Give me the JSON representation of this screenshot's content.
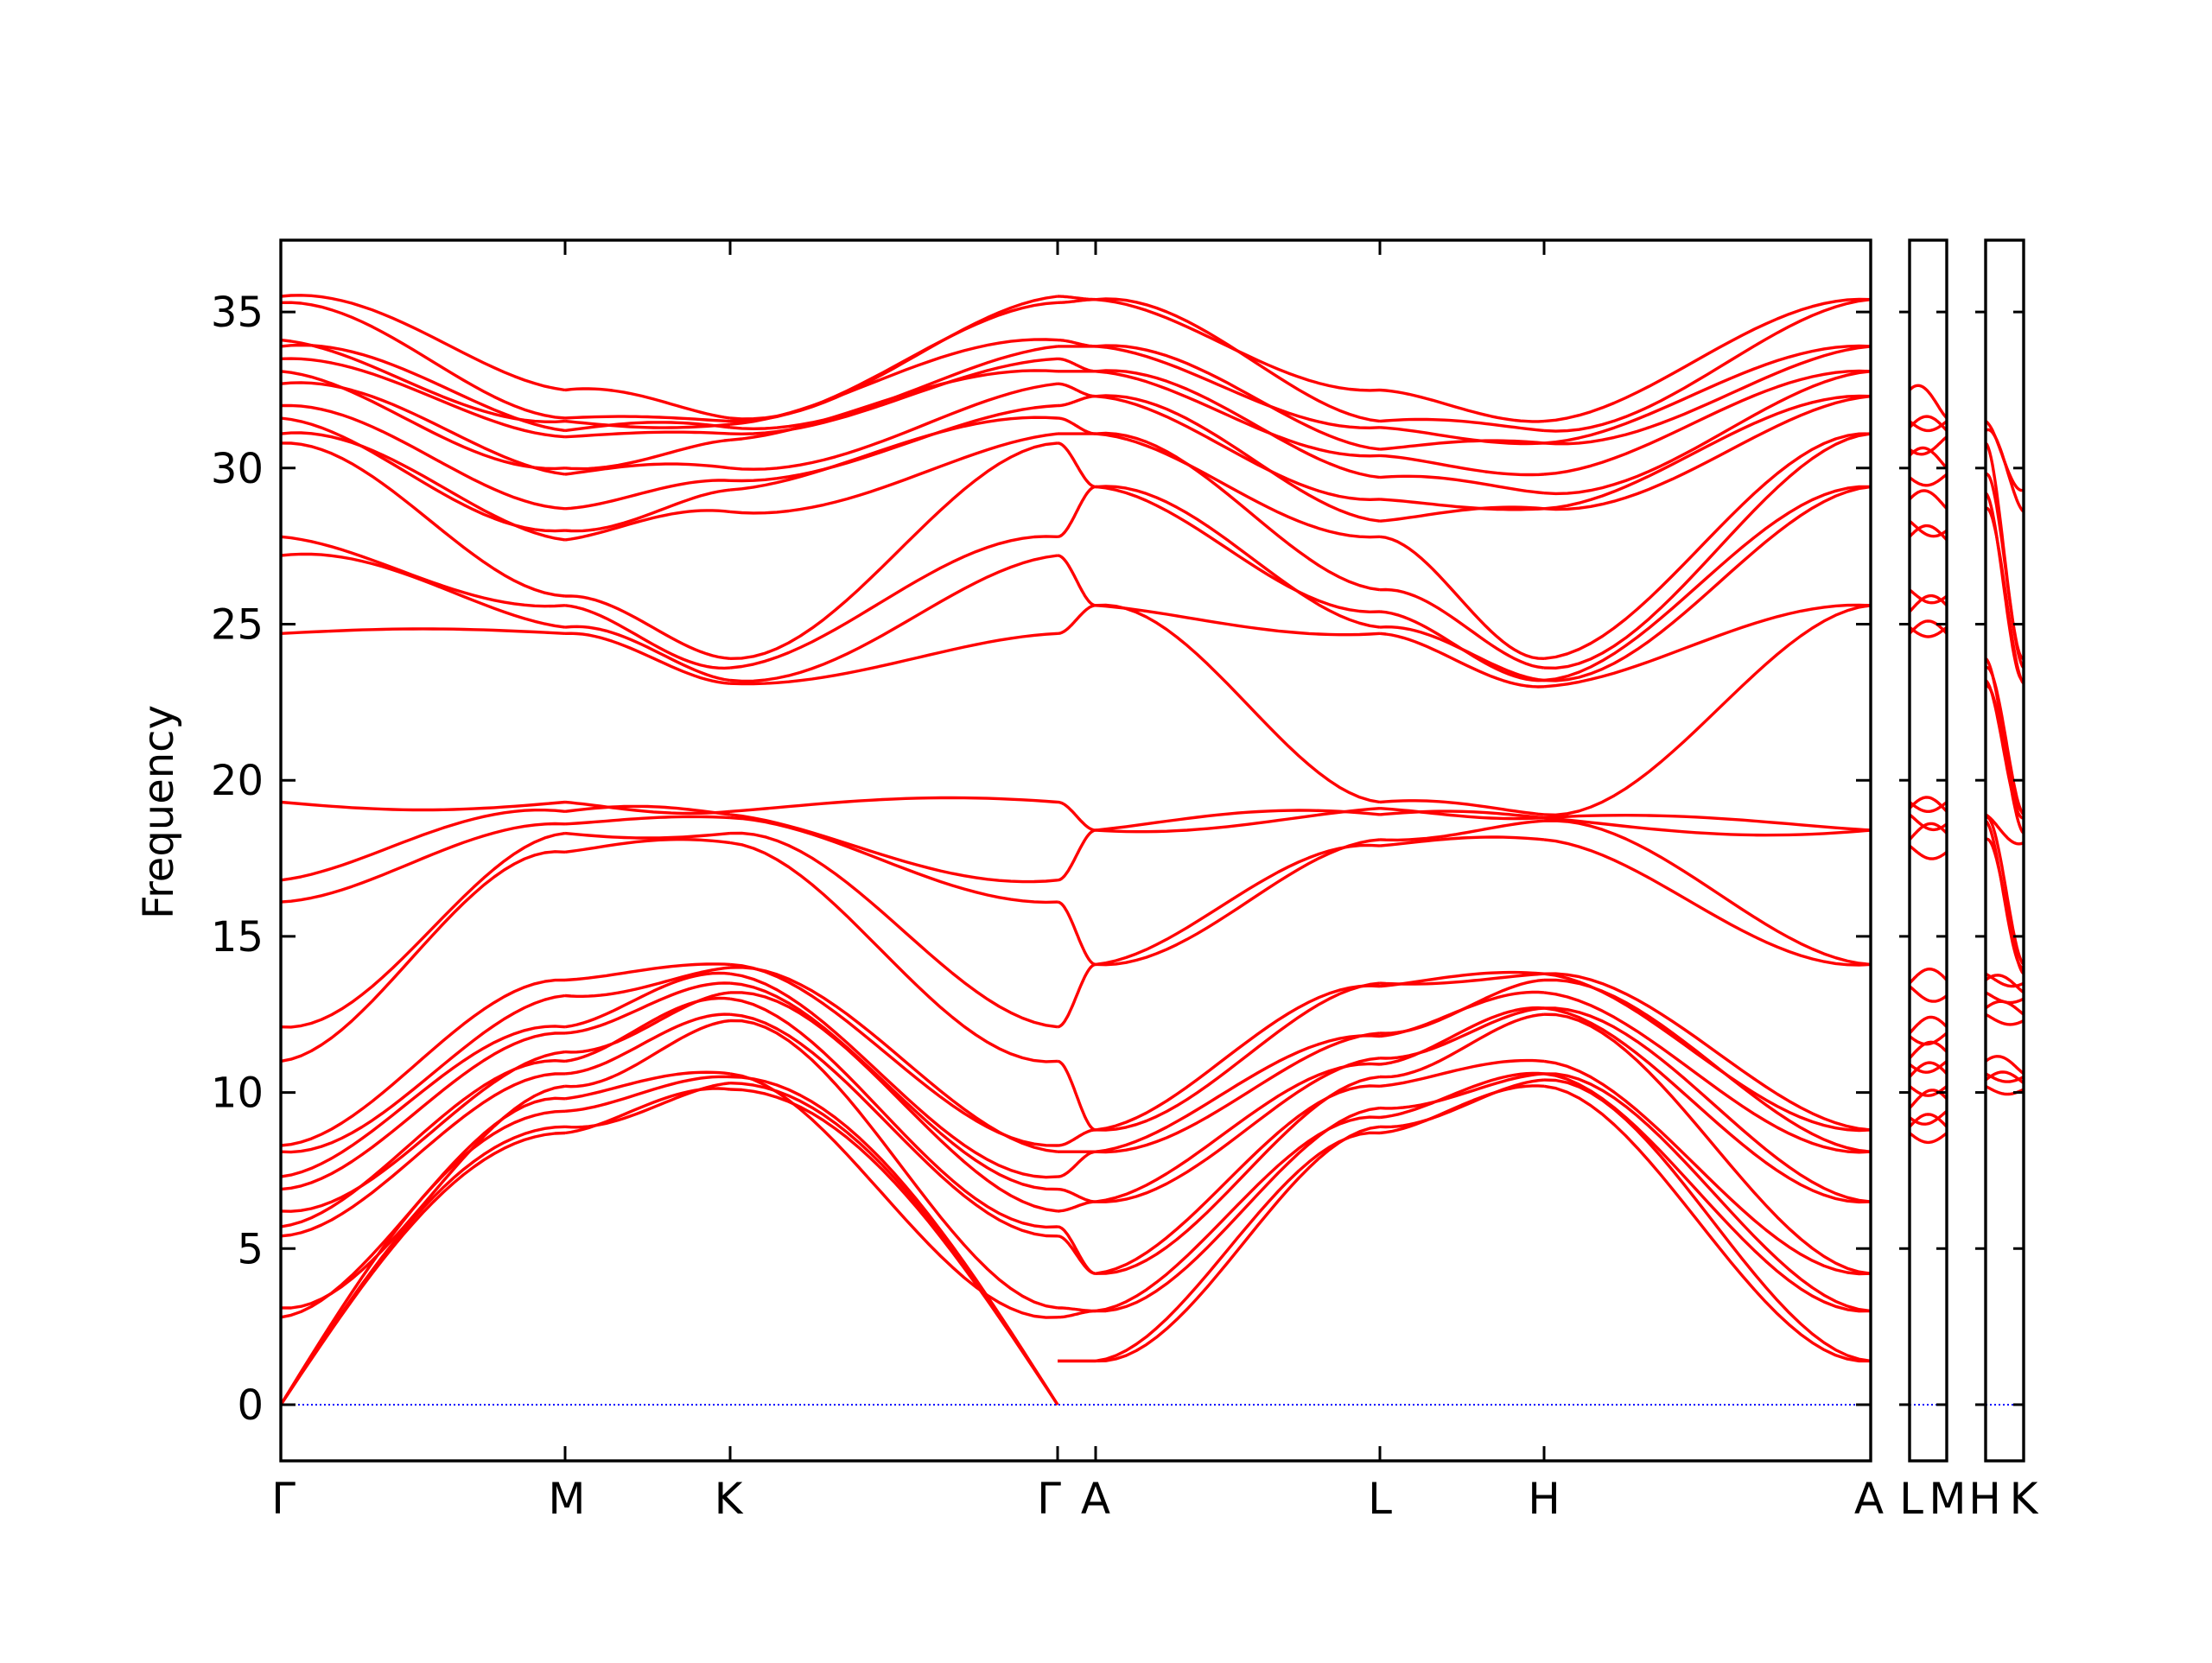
{
  "chart_data": {
    "type": "line",
    "title": "",
    "ylabel": "Frequency",
    "xlabel": "",
    "ylim": [
      -1.8,
      37.3
    ],
    "yticks": [
      0,
      5,
      10,
      15,
      20,
      25,
      30,
      35
    ],
    "grid": false,
    "legend": "none",
    "colors": {
      "bands": "#ff0000",
      "zero_line": "#0000ff",
      "axes": "#000000"
    },
    "panels": [
      {
        "id": "main",
        "path": [
          "Γ",
          "M",
          "K",
          "Γ",
          "A",
          "L",
          "H",
          "A"
        ],
        "tick_labels": [
          "Γ",
          "M",
          "K",
          "Γ",
          "A",
          "L",
          "H",
          "A"
        ]
      },
      {
        "id": "lm",
        "path": [
          "L",
          "M"
        ],
        "tick_labels": [
          "L",
          "M"
        ]
      },
      {
        "id": "hk",
        "path": [
          "H",
          "K"
        ],
        "tick_labels": [
          "H",
          "K"
        ]
      }
    ],
    "combined_tick_labels": {
      "main_end": "A",
      "lm_pair": "LM",
      "hk_pair": "HK"
    },
    "point_values": {
      "Γ": [
        0,
        0,
        0,
        2.8,
        3.1,
        5.4,
        5.7,
        6.2,
        6.9,
        7.3,
        8.1,
        8.3,
        11.0,
        12.1,
        16.1,
        16.8,
        19.3,
        24.7,
        27.2,
        27.8,
        30.8,
        31.1,
        31.6,
        32.0,
        32.7,
        33.1,
        33.5,
        33.9,
        34.1,
        35.3,
        35.5
      ],
      "M": [
        8.7,
        8.9,
        9.4,
        9.8,
        10.2,
        10.6,
        11.0,
        11.3,
        11.9,
        12.1,
        13.1,
        13.6,
        17.7,
        18.3,
        18.6,
        19.0,
        19.3,
        24.7,
        24.9,
        25.6,
        25.9,
        27.7,
        28.0,
        28.7,
        29.8,
        30.0,
        31.0,
        31.2,
        31.5,
        31.6,
        32.5
      ],
      "K": [
        10.1,
        10.3,
        10.5,
        10.6,
        12.3,
        12.5,
        13.0,
        13.2,
        13.5,
        13.8,
        14.0,
        14.1,
        18.0,
        18.3,
        18.8,
        18.9,
        19.0,
        23.1,
        23.2,
        23.6,
        23.9,
        28.6,
        29.3,
        29.6,
        30.0,
        30.9,
        31.1,
        31.3,
        31.4,
        31.5,
        31.6
      ],
      "A": [
        1.4,
        1.4,
        3.0,
        3.0,
        4.2,
        4.2,
        6.5,
        6.5,
        8.1,
        8.1,
        8.8,
        8.8,
        14.1,
        14.1,
        18.4,
        18.4,
        25.6,
        25.6,
        29.4,
        29.4,
        31.1,
        31.1,
        32.3,
        32.3,
        33.1,
        33.1,
        33.9,
        33.9,
        35.4,
        35.4
      ],
      "L": [
        8.7,
        8.9,
        9.2,
        9.5,
        10.2,
        10.5,
        10.9,
        11.1,
        11.8,
        11.9,
        13.4,
        13.5,
        17.9,
        18.1,
        18.9,
        19.1,
        19.3,
        24.7,
        24.9,
        25.4,
        26.1,
        27.8,
        28.3,
        29.0,
        29.7,
        30.4,
        30.6,
        31.3,
        31.5,
        32.5
      ],
      "H": [
        10.2,
        10.4,
        10.6,
        11.0,
        12.5,
        12.7,
        13.2,
        13.6,
        13.8,
        18.1,
        18.7,
        18.8,
        18.9,
        23.0,
        23.2,
        23.6,
        23.9,
        28.7,
        29.2,
        29.8,
        30.8,
        31.2,
        31.5
      ]
    }
  }
}
